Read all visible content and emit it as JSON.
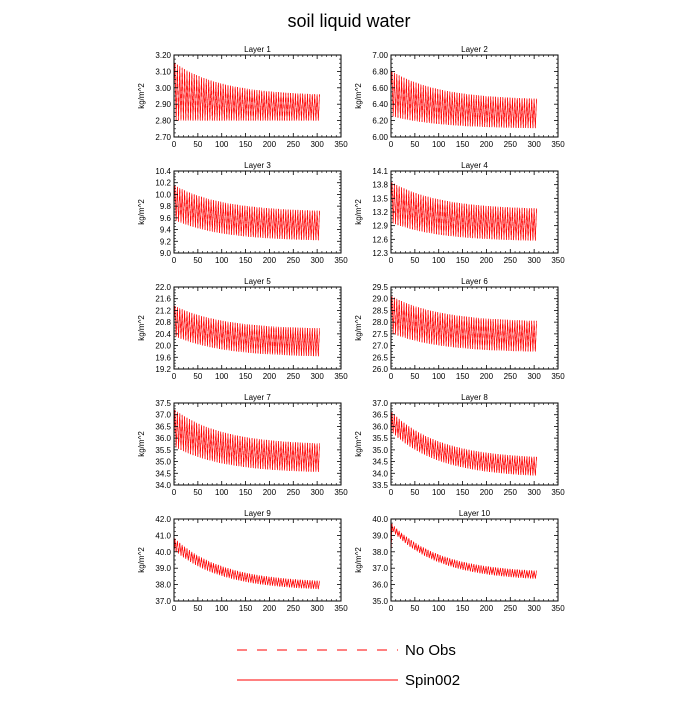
{
  "title": "soil liquid water",
  "legend": {
    "entries": [
      {
        "label": "No Obs",
        "color": "#ff0000",
        "style": "dashed"
      },
      {
        "label": "Spin002",
        "color": "#ff0000",
        "style": "solid"
      }
    ]
  },
  "chart_data": [
    {
      "type": "line",
      "title": "Layer 1",
      "xlabel": "",
      "ylabel": "kg/m^2",
      "xlim": [
        0,
        350
      ],
      "ylim": [
        2.7,
        3.2
      ],
      "xticks": [
        0,
        50,
        100,
        150,
        200,
        250,
        300,
        350
      ],
      "xtick_labels": [
        "0",
        "50",
        "100",
        "150",
        "200",
        "250",
        "300",
        "350"
      ],
      "yticks": [
        2.7,
        2.8,
        2.9,
        3.0,
        3.1,
        3.2
      ],
      "ytick_labels": [
        "2.70",
        "2.80",
        "2.90",
        "3.00",
        "3.10",
        "3.20"
      ],
      "x_end": 305,
      "envelope": {
        "upper_start": 3.15,
        "upper_end": 2.95,
        "lower_start": 2.8,
        "lower_end": 2.8
      },
      "series": [
        {
          "name": "No Obs",
          "style": "dashed"
        },
        {
          "name": "Spin002",
          "style": "solid"
        }
      ]
    },
    {
      "type": "line",
      "title": "Layer 2",
      "xlabel": "",
      "ylabel": "kg/m^2",
      "xlim": [
        0,
        350
      ],
      "ylim": [
        6.0,
        7.0
      ],
      "xticks": [
        0,
        50,
        100,
        150,
        200,
        250,
        300,
        350
      ],
      "xtick_labels": [
        "0",
        "50",
        "100",
        "150",
        "200",
        "250",
        "300",
        "350"
      ],
      "yticks": [
        6.0,
        6.2,
        6.4,
        6.6,
        6.8,
        7.0
      ],
      "ytick_labels": [
        "6.00",
        "6.20",
        "6.40",
        "6.60",
        "6.80",
        "7.00"
      ],
      "x_end": 305,
      "envelope": {
        "upper_start": 6.8,
        "upper_end": 6.45,
        "lower_start": 6.25,
        "lower_end": 6.1
      },
      "series": [
        {
          "name": "No Obs",
          "style": "dashed"
        },
        {
          "name": "Spin002",
          "style": "solid"
        }
      ]
    },
    {
      "type": "line",
      "title": "Layer 3",
      "xlabel": "",
      "ylabel": "kg/m^2",
      "xlim": [
        0,
        350
      ],
      "ylim": [
        9.0,
        10.4
      ],
      "xticks": [
        0,
        50,
        100,
        150,
        200,
        250,
        300,
        350
      ],
      "xtick_labels": [
        "0",
        "50",
        "100",
        "150",
        "200",
        "250",
        "300",
        "350"
      ],
      "yticks": [
        9.0,
        9.2,
        9.4,
        9.6,
        9.8,
        10.0,
        10.2,
        10.4
      ],
      "ytick_labels": [
        "9.0",
        "9.2",
        "9.4",
        "9.6",
        "9.8",
        "10.0",
        "10.2",
        "10.4"
      ],
      "x_end": 305,
      "envelope": {
        "upper_start": 10.15,
        "upper_end": 9.7,
        "lower_start": 9.55,
        "lower_end": 9.2
      },
      "series": [
        {
          "name": "No Obs",
          "style": "dashed"
        },
        {
          "name": "Spin002",
          "style": "solid"
        }
      ]
    },
    {
      "type": "line",
      "title": "Layer 4",
      "xlabel": "",
      "ylabel": "kg/m^2",
      "xlim": [
        0,
        350
      ],
      "ylim": [
        12.3,
        14.1
      ],
      "xticks": [
        0,
        50,
        100,
        150,
        200,
        250,
        300,
        350
      ],
      "xtick_labels": [
        "0",
        "50",
        "100",
        "150",
        "200",
        "250",
        "300",
        "350"
      ],
      "yticks": [
        12.3,
        12.6,
        12.9,
        13.2,
        13.5,
        13.8,
        14.1
      ],
      "ytick_labels": [
        "12.3",
        "12.6",
        "12.9",
        "13.2",
        "13.5",
        "13.8",
        "14.1"
      ],
      "x_end": 305,
      "envelope": {
        "upper_start": 13.85,
        "upper_end": 13.25,
        "lower_start": 12.95,
        "lower_end": 12.55
      },
      "series": [
        {
          "name": "No Obs",
          "style": "dashed"
        },
        {
          "name": "Spin002",
          "style": "solid"
        }
      ]
    },
    {
      "type": "line",
      "title": "Layer 5",
      "xlabel": "",
      "ylabel": "kg/m^2",
      "xlim": [
        0,
        350
      ],
      "ylim": [
        19.2,
        22.0
      ],
      "xticks": [
        0,
        50,
        100,
        150,
        200,
        250,
        300,
        350
      ],
      "xtick_labels": [
        "0",
        "50",
        "100",
        "150",
        "200",
        "250",
        "300",
        "350"
      ],
      "yticks": [
        19.2,
        19.6,
        20.0,
        20.4,
        20.8,
        21.2,
        21.6,
        22.0
      ],
      "ytick_labels": [
        "19.2",
        "19.6",
        "20.0",
        "20.4",
        "20.8",
        "21.2",
        "21.6",
        "22.0"
      ],
      "x_end": 305,
      "envelope": {
        "upper_start": 21.35,
        "upper_end": 20.55,
        "lower_start": 20.3,
        "lower_end": 19.6
      },
      "series": [
        {
          "name": "No Obs",
          "style": "dashed"
        },
        {
          "name": "Spin002",
          "style": "solid"
        }
      ]
    },
    {
      "type": "line",
      "title": "Layer 6",
      "xlabel": "",
      "ylabel": "kg/m^2",
      "xlim": [
        0,
        350
      ],
      "ylim": [
        26.0,
        29.5
      ],
      "xticks": [
        0,
        50,
        100,
        150,
        200,
        250,
        300,
        350
      ],
      "xtick_labels": [
        "0",
        "50",
        "100",
        "150",
        "200",
        "250",
        "300",
        "350"
      ],
      "yticks": [
        26.0,
        26.5,
        27.0,
        27.5,
        28.0,
        28.5,
        29.0,
        29.5
      ],
      "ytick_labels": [
        "26.0",
        "26.5",
        "27.0",
        "27.5",
        "28.0",
        "28.5",
        "29.0",
        "29.5"
      ],
      "x_end": 305,
      "envelope": {
        "upper_start": 29.1,
        "upper_end": 28.0,
        "lower_start": 27.5,
        "lower_end": 26.7
      },
      "series": [
        {
          "name": "No Obs",
          "style": "dashed"
        },
        {
          "name": "Spin002",
          "style": "solid"
        }
      ]
    },
    {
      "type": "line",
      "title": "Layer 7",
      "xlabel": "",
      "ylabel": "kg/m^2",
      "xlim": [
        0,
        350
      ],
      "ylim": [
        34.0,
        37.5
      ],
      "xticks": [
        0,
        50,
        100,
        150,
        200,
        250,
        300,
        350
      ],
      "xtick_labels": [
        "0",
        "50",
        "100",
        "150",
        "200",
        "250",
        "300",
        "350"
      ],
      "yticks": [
        34.0,
        34.5,
        35.0,
        35.5,
        36.0,
        36.5,
        37.0,
        37.5
      ],
      "ytick_labels": [
        "34.0",
        "34.5",
        "35.0",
        "35.5",
        "36.0",
        "36.5",
        "37.0",
        "37.5"
      ],
      "x_end": 305,
      "envelope": {
        "upper_start": 37.2,
        "upper_end": 35.7,
        "lower_start": 35.6,
        "lower_end": 34.5
      },
      "series": [
        {
          "name": "No Obs",
          "style": "dashed"
        },
        {
          "name": "Spin002",
          "style": "solid"
        }
      ]
    },
    {
      "type": "line",
      "title": "Layer 8",
      "xlabel": "",
      "ylabel": "kg/m^2",
      "xlim": [
        0,
        350
      ],
      "ylim": [
        33.5,
        37.0
      ],
      "xticks": [
        0,
        50,
        100,
        150,
        200,
        250,
        300,
        350
      ],
      "xtick_labels": [
        "0",
        "50",
        "100",
        "150",
        "200",
        "250",
        "300",
        "350"
      ],
      "yticks": [
        33.5,
        34.0,
        34.5,
        35.0,
        35.5,
        36.0,
        36.5,
        37.0
      ],
      "ytick_labels": [
        "33.5",
        "34.0",
        "34.5",
        "35.0",
        "35.5",
        "36.0",
        "36.5",
        "37.0"
      ],
      "x_end": 305,
      "envelope": {
        "upper_start": 36.6,
        "upper_end": 34.6,
        "lower_start": 35.7,
        "lower_end": 33.8
      },
      "series": [
        {
          "name": "No Obs",
          "style": "dashed"
        },
        {
          "name": "Spin002",
          "style": "solid"
        }
      ]
    },
    {
      "type": "line",
      "title": "Layer 9",
      "xlabel": "",
      "ylabel": "kg/m^2",
      "xlim": [
        0,
        350
      ],
      "ylim": [
        37.0,
        42.0
      ],
      "xticks": [
        0,
        50,
        100,
        150,
        200,
        250,
        300,
        350
      ],
      "xtick_labels": [
        "0",
        "50",
        "100",
        "150",
        "200",
        "250",
        "300",
        "350"
      ],
      "yticks": [
        37.0,
        38.0,
        39.0,
        40.0,
        41.0,
        42.0
      ],
      "ytick_labels": [
        "37.0",
        "38.0",
        "39.0",
        "40.0",
        "41.0",
        "42.0"
      ],
      "x_end": 305,
      "envelope": {
        "upper_start": 40.8,
        "upper_end": 38.1,
        "lower_start": 40.0,
        "lower_end": 37.6
      },
      "series": [
        {
          "name": "No Obs",
          "style": "dashed"
        },
        {
          "name": "Spin002",
          "style": "solid"
        }
      ]
    },
    {
      "type": "line",
      "title": "Layer 10",
      "xlabel": "",
      "ylabel": "kg/m^2",
      "xlim": [
        0,
        350
      ],
      "ylim": [
        35.0,
        40.0
      ],
      "xticks": [
        0,
        50,
        100,
        150,
        200,
        250,
        300,
        350
      ],
      "xtick_labels": [
        "0",
        "50",
        "100",
        "150",
        "200",
        "250",
        "300",
        "350"
      ],
      "yticks": [
        35.0,
        36.0,
        37.0,
        38.0,
        39.0,
        40.0
      ],
      "ytick_labels": [
        "35.0",
        "36.0",
        "37.0",
        "38.0",
        "39.0",
        "40.0"
      ],
      "x_end": 305,
      "envelope": {
        "upper_start": 39.7,
        "upper_end": 36.7,
        "lower_start": 39.2,
        "lower_end": 36.2
      },
      "series": [
        {
          "name": "No Obs",
          "style": "dashed"
        },
        {
          "name": "Spin002",
          "style": "solid"
        }
      ]
    }
  ]
}
